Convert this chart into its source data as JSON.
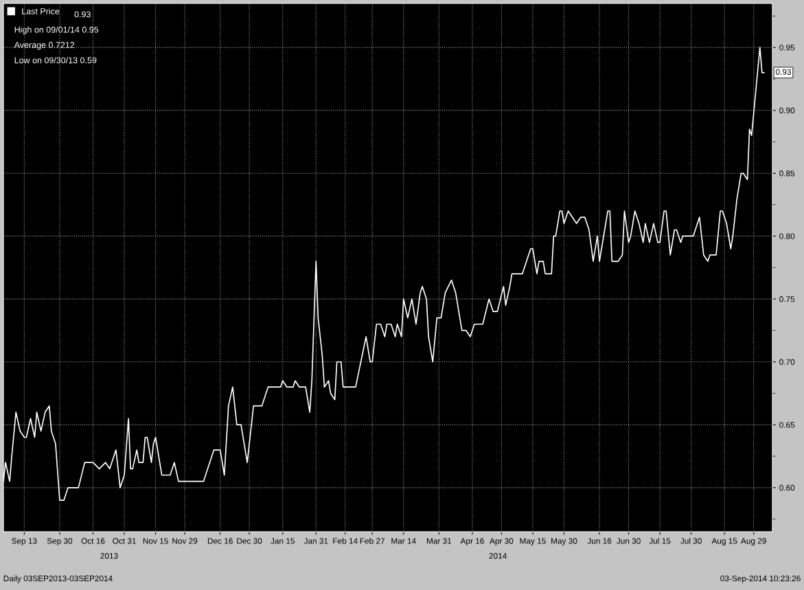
{
  "chart_data": {
    "type": "line",
    "x": [
      "2013-09-03",
      "2013-09-04",
      "2013-09-06",
      "2013-09-07",
      "2013-09-09",
      "2013-09-11",
      "2013-09-13",
      "2013-09-14",
      "2013-09-16",
      "2013-09-18",
      "2013-09-19",
      "2013-09-21",
      "2013-09-23",
      "2013-09-25",
      "2013-09-26",
      "2013-09-28",
      "2013-09-30",
      "2013-10-02",
      "2013-10-04",
      "2013-10-09",
      "2013-10-12",
      "2013-10-16",
      "2013-10-19",
      "2013-10-22",
      "2013-10-24",
      "2013-10-27",
      "2013-10-29",
      "2013-10-31",
      "2013-11-02",
      "2013-11-03",
      "2013-11-04",
      "2013-11-06",
      "2013-11-07",
      "2013-11-09",
      "2013-11-10",
      "2013-11-11",
      "2013-11-13",
      "2013-11-14",
      "2013-11-15",
      "2013-11-18",
      "2013-11-22",
      "2013-11-24",
      "2013-11-26",
      "2013-12-08",
      "2013-12-13",
      "2013-12-16",
      "2013-12-18",
      "2013-12-20",
      "2013-12-22",
      "2013-12-24",
      "2013-12-26",
      "2013-12-29",
      "2014-01-01",
      "2014-01-05",
      "2014-01-07",
      "2014-01-08",
      "2014-01-14",
      "2014-01-15",
      "2014-01-17",
      "2014-01-20",
      "2014-01-21",
      "2014-01-23",
      "2014-01-26",
      "2014-01-28",
      "2014-01-29",
      "2014-01-31",
      "2014-02-01",
      "2014-02-03",
      "2014-02-04",
      "2014-02-06",
      "2014-02-07",
      "2014-02-09",
      "2014-02-10",
      "2014-02-12",
      "2014-02-13",
      "2014-02-19",
      "2014-02-24",
      "2014-02-26",
      "2014-02-27",
      "2014-03-01",
      "2014-03-03",
      "2014-03-05",
      "2014-03-06",
      "2014-03-08",
      "2014-03-10",
      "2014-03-11",
      "2014-03-13",
      "2014-03-14",
      "2014-03-16",
      "2014-03-18",
      "2014-03-20",
      "2014-03-22",
      "2014-03-23",
      "2014-03-25",
      "2014-03-26",
      "2014-03-28",
      "2014-03-30",
      "2014-04-01",
      "2014-04-03",
      "2014-04-06",
      "2014-04-08",
      "2014-04-11",
      "2014-04-13",
      "2014-04-15",
      "2014-04-17",
      "2014-04-21",
      "2014-04-24",
      "2014-04-26",
      "2014-04-28",
      "2014-05-01",
      "2014-05-02",
      "2014-05-04",
      "2014-05-05",
      "2014-05-10",
      "2014-05-14",
      "2014-05-15",
      "2014-05-17",
      "2014-05-18",
      "2014-05-20",
      "2014-05-21",
      "2014-05-24",
      "2014-05-25",
      "2014-05-26",
      "2014-05-28",
      "2014-05-29",
      "2014-05-30",
      "2014-06-01",
      "2014-06-05",
      "2014-06-07",
      "2014-06-09",
      "2014-06-11",
      "2014-06-13",
      "2014-06-15",
      "2014-06-16",
      "2014-06-20",
      "2014-06-21",
      "2014-06-22",
      "2014-06-25",
      "2014-06-27",
      "2014-06-28",
      "2014-06-30",
      "2014-07-01",
      "2014-07-03",
      "2014-07-05",
      "2014-07-07",
      "2014-07-08",
      "2014-07-10",
      "2014-07-12",
      "2014-07-14",
      "2014-07-15",
      "2014-07-17",
      "2014-07-18",
      "2014-07-20",
      "2014-07-22",
      "2014-07-23",
      "2014-07-25",
      "2014-07-26",
      "2014-07-31",
      "2014-08-03",
      "2014-08-05",
      "2014-08-07",
      "2014-08-08",
      "2014-08-11",
      "2014-08-13",
      "2014-08-14",
      "2014-08-16",
      "2014-08-18",
      "2014-08-19",
      "2014-08-21",
      "2014-08-23",
      "2014-08-24",
      "2014-08-26",
      "2014-08-27",
      "2014-08-28",
      "2014-09-01",
      "2014-09-02",
      "2014-09-03"
    ],
    "series": [
      {
        "name": "Last Price",
        "color": "#ffffff",
        "values": [
          0.605,
          0.62,
          0.605,
          0.625,
          0.66,
          0.645,
          0.64,
          0.64,
          0.655,
          0.64,
          0.66,
          0.645,
          0.66,
          0.665,
          0.645,
          0.635,
          0.59,
          0.59,
          0.6,
          0.6,
          0.62,
          0.62,
          0.615,
          0.62,
          0.615,
          0.63,
          0.6,
          0.61,
          0.655,
          0.615,
          0.615,
          0.63,
          0.62,
          0.62,
          0.64,
          0.64,
          0.62,
          0.635,
          0.64,
          0.61,
          0.61,
          0.62,
          0.605,
          0.605,
          0.63,
          0.63,
          0.61,
          0.665,
          0.68,
          0.65,
          0.65,
          0.62,
          0.665,
          0.665,
          0.675,
          0.68,
          0.68,
          0.685,
          0.68,
          0.68,
          0.685,
          0.68,
          0.68,
          0.66,
          0.685,
          0.78,
          0.735,
          0.705,
          0.68,
          0.685,
          0.675,
          0.67,
          0.7,
          0.7,
          0.68,
          0.68,
          0.72,
          0.7,
          0.7,
          0.73,
          0.73,
          0.72,
          0.73,
          0.73,
          0.72,
          0.73,
          0.72,
          0.75,
          0.735,
          0.75,
          0.73,
          0.755,
          0.76,
          0.75,
          0.72,
          0.7,
          0.735,
          0.735,
          0.755,
          0.765,
          0.755,
          0.725,
          0.725,
          0.72,
          0.73,
          0.73,
          0.75,
          0.74,
          0.74,
          0.76,
          0.745,
          0.76,
          0.77,
          0.77,
          0.79,
          0.79,
          0.77,
          0.78,
          0.78,
          0.77,
          0.77,
          0.8,
          0.8,
          0.82,
          0.82,
          0.81,
          0.82,
          0.81,
          0.815,
          0.815,
          0.805,
          0.78,
          0.8,
          0.78,
          0.82,
          0.82,
          0.78,
          0.78,
          0.785,
          0.82,
          0.795,
          0.8,
          0.82,
          0.81,
          0.795,
          0.81,
          0.795,
          0.81,
          0.795,
          0.795,
          0.82,
          0.82,
          0.785,
          0.805,
          0.805,
          0.795,
          0.8,
          0.8,
          0.815,
          0.785,
          0.78,
          0.785,
          0.785,
          0.82,
          0.82,
          0.81,
          0.79,
          0.8,
          0.83,
          0.85,
          0.85,
          0.845,
          0.885,
          0.88,
          0.95,
          0.93,
          0.93
        ]
      }
    ],
    "xlim": [
      "2013-09-03",
      "2014-09-07"
    ],
    "xticks": [
      {
        "value": "2013-09-13",
        "label": "Sep 13"
      },
      {
        "value": "2013-09-30",
        "label": "Sep 30"
      },
      {
        "value": "2013-10-16",
        "label": "Oct 16"
      },
      {
        "value": "2013-10-31",
        "label": "Oct 31"
      },
      {
        "value": "2013-11-15",
        "label": "Nov 15"
      },
      {
        "value": "2013-11-29",
        "label": "Nov 29"
      },
      {
        "value": "2013-12-16",
        "label": "Dec 16"
      },
      {
        "value": "2013-12-30",
        "label": "Dec 30"
      },
      {
        "value": "2014-01-15",
        "label": "Jan 15"
      },
      {
        "value": "2014-01-31",
        "label": "Jan 31"
      },
      {
        "value": "2014-02-14",
        "label": "Feb 14"
      },
      {
        "value": "2014-02-27",
        "label": "Feb 27"
      },
      {
        "value": "2014-03-14",
        "label": "Mar 14"
      },
      {
        "value": "2014-03-31",
        "label": "Mar 31"
      },
      {
        "value": "2014-04-16",
        "label": "Apr 16"
      },
      {
        "value": "2014-04-30",
        "label": "Apr 30"
      },
      {
        "value": "2014-05-15",
        "label": "May 15"
      },
      {
        "value": "2014-05-30",
        "label": "May 30"
      },
      {
        "value": "2014-06-16",
        "label": "Jun 16"
      },
      {
        "value": "2014-06-30",
        "label": "Jun 30"
      },
      {
        "value": "2014-07-15",
        "label": "Jul 15"
      },
      {
        "value": "2014-07-30",
        "label": "Jul 30"
      },
      {
        "value": "2014-08-15",
        "label": "Aug 15"
      },
      {
        "value": "2014-08-29",
        "label": "Aug 29"
      }
    ],
    "ylim": [
      0.565,
      0.985
    ],
    "yticks": [
      {
        "value": 0.575,
        "label": null
      },
      {
        "value": 0.6,
        "label": "0.60"
      },
      {
        "value": 0.625,
        "label": null
      },
      {
        "value": 0.65,
        "label": "0.65"
      },
      {
        "value": 0.675,
        "label": null
      },
      {
        "value": 0.7,
        "label": "0.70"
      },
      {
        "value": 0.725,
        "label": null
      },
      {
        "value": 0.75,
        "label": "0.75"
      },
      {
        "value": 0.775,
        "label": null
      },
      {
        "value": 0.8,
        "label": "0.80"
      },
      {
        "value": 0.825,
        "label": null
      },
      {
        "value": 0.85,
        "label": "0.85"
      },
      {
        "value": 0.875,
        "label": null
      },
      {
        "value": 0.9,
        "label": "0.90"
      },
      {
        "value": 0.925,
        "label": null
      },
      {
        "value": 0.95,
        "label": "0.95"
      },
      {
        "value": 0.975,
        "label": null
      }
    ],
    "grid": true,
    "legend": "top left",
    "line_style": "solid",
    "annotations": [
      {
        "text": "0.93",
        "x": "2014-09-03",
        "y": 0.93
      },
      "0.93",
      "High on 09/01/14 0.95",
      "Average 0.7212",
      "Low on 09/30/13 0.59",
      "2013",
      "2014",
      "Daily 03SEP2013-03SEP2014",
      "03-Sep-2014 10:23:26"
    ]
  }
}
